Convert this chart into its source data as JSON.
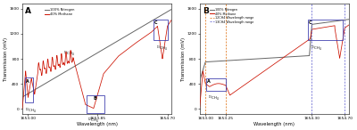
{
  "panel_A": {
    "xlabel": "Wavelength (nm)",
    "ylabel": "Transmission (mV)",
    "xlim": [
      1652.93,
      1654.75
    ],
    "ylim": [
      -80,
      1680
    ],
    "xticks": [
      1653.0,
      1653.85,
      1654.7
    ],
    "yticks": [
      0,
      400,
      800,
      1200,
      1600
    ],
    "label": "A",
    "nitrogen_color": "#666666",
    "methane_color": "#cc1100",
    "legend_entries": [
      "100% Nitrogen",
      "40% Methane"
    ],
    "box_color": "#3333aa"
  },
  "panel_B": {
    "xlabel": "Wavelength (nm)",
    "ylabel": "Transmission (mV)",
    "xlim": [
      1652.93,
      1654.75
    ],
    "ylim": [
      -80,
      1680
    ],
    "xticks": [
      1653.0,
      1653.25,
      1654.3,
      1654.7
    ],
    "yticks": [
      0,
      400,
      800,
      1200,
      1600
    ],
    "label": "B",
    "nitrogen_color": "#666666",
    "methane_color": "#cc1100",
    "ch4_12_range_color": "#dd6600",
    "ch4_13_range_color": "#5555cc",
    "legend_entries": [
      "100% Nitrogen",
      "40% Methane",
      "12CH4 Wavelength range",
      "13CH4 Wavelength range"
    ],
    "vlines_12": [
      1653.0,
      1653.25
    ],
    "vlines_13": [
      1654.3,
      1654.7
    ],
    "box_color": "#3333aa"
  }
}
